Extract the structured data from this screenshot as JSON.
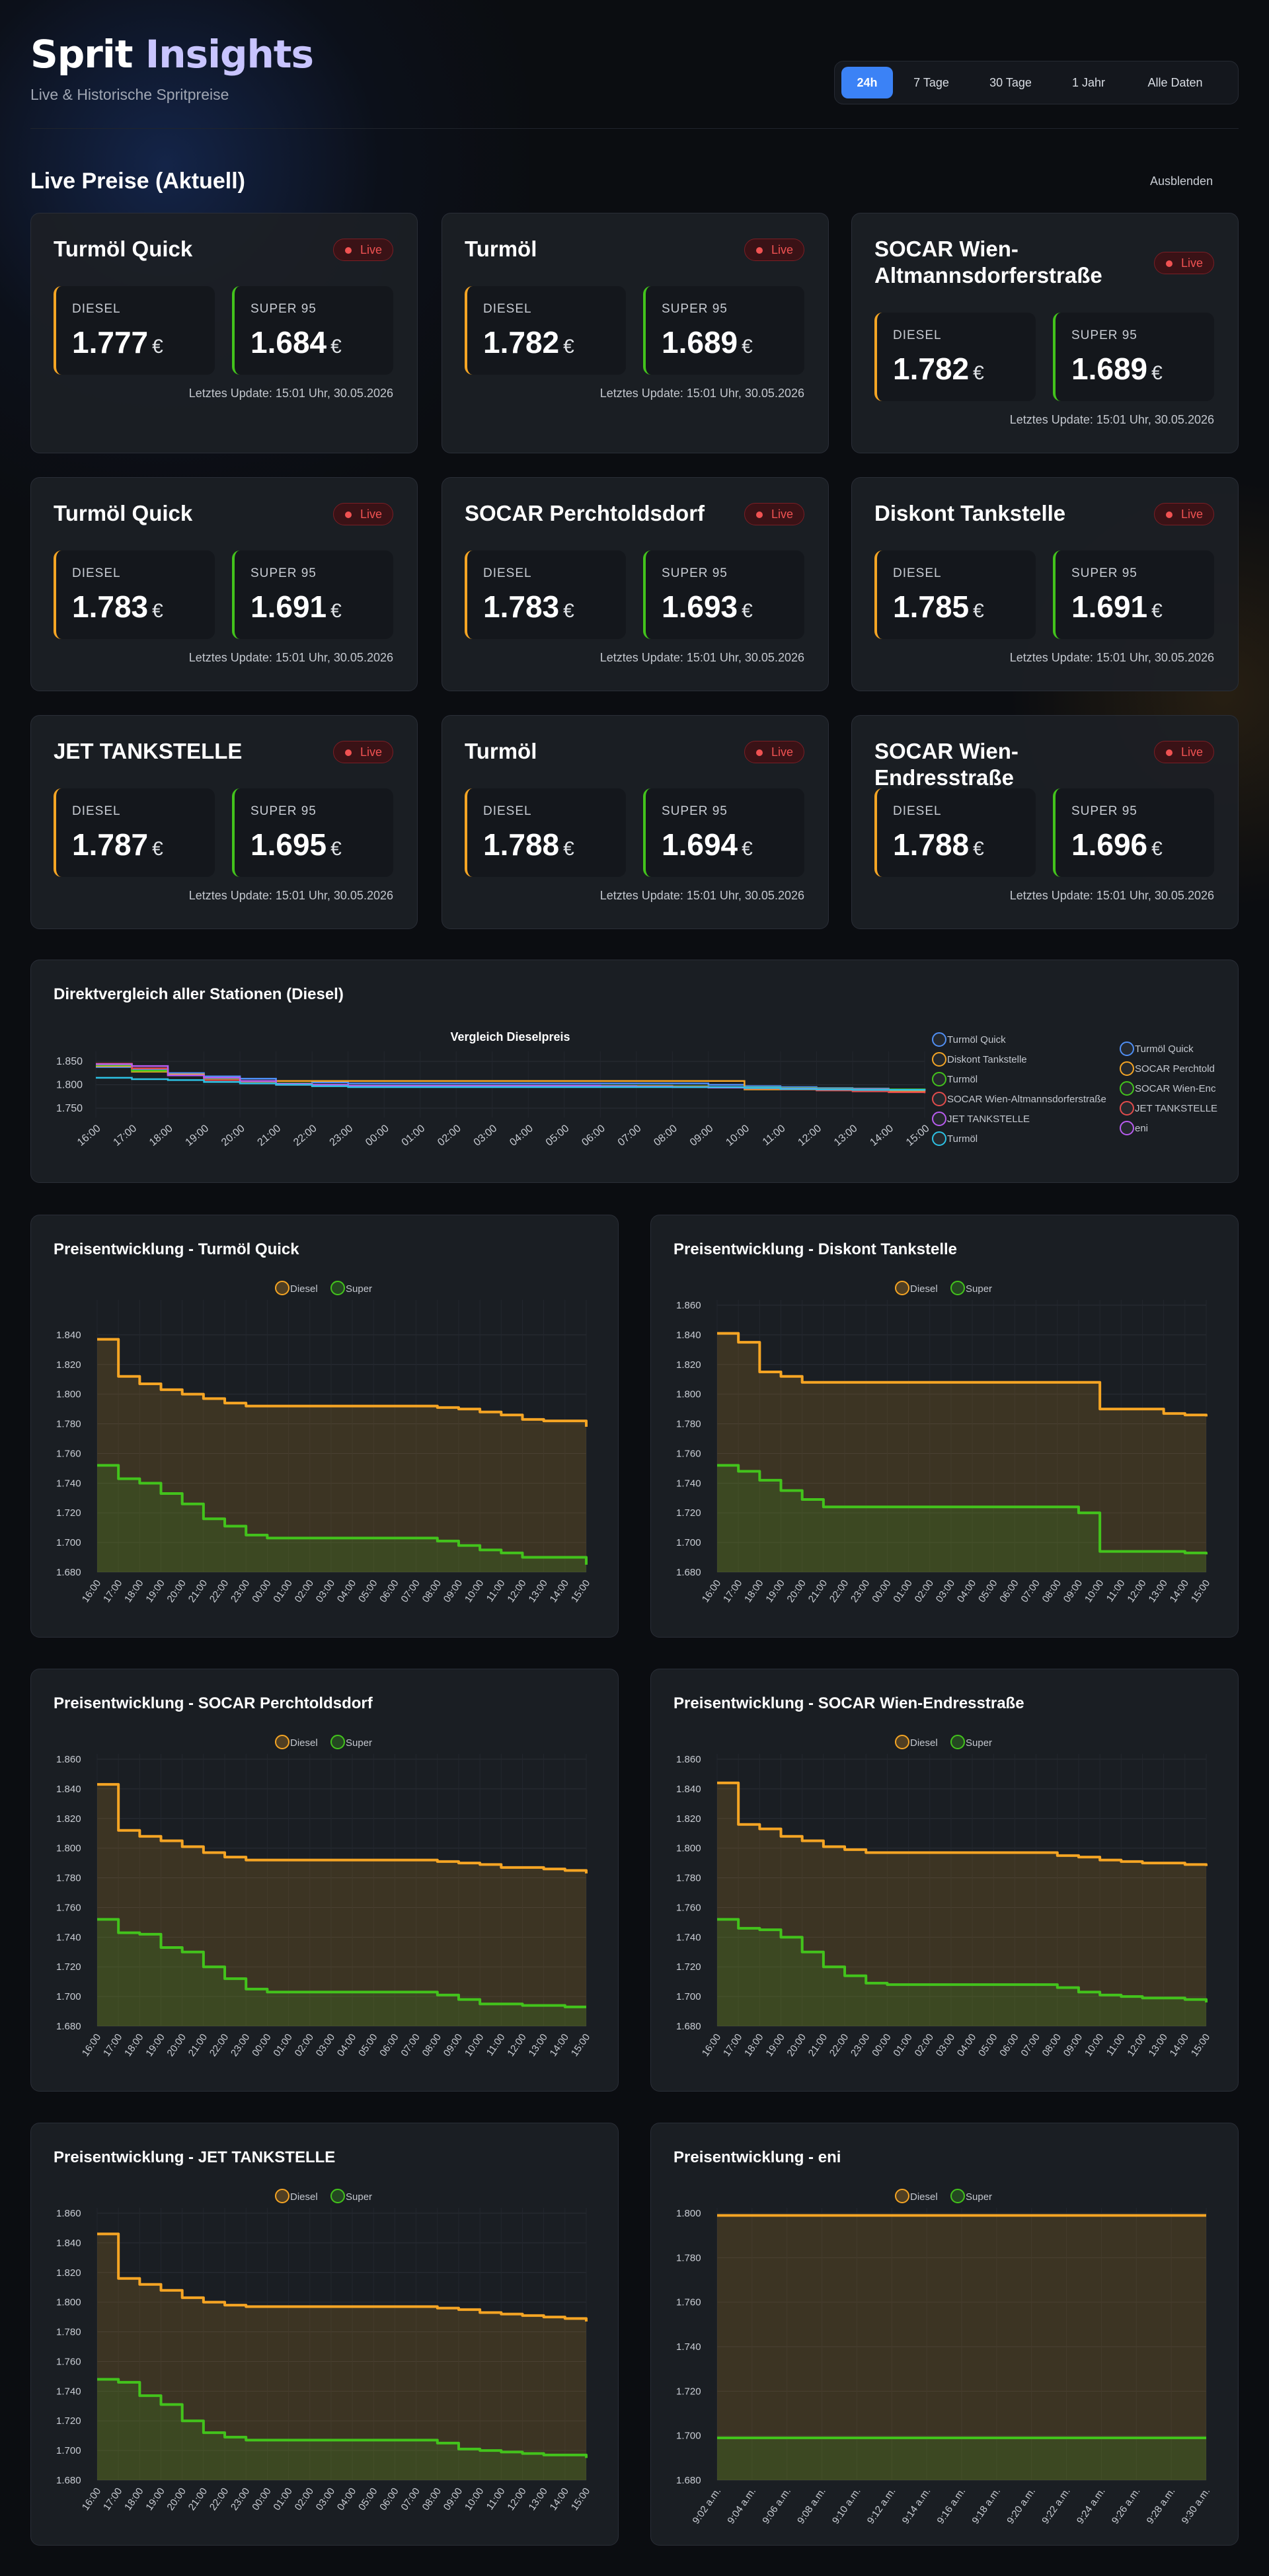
{
  "header": {
    "title_main": "Sprit",
    "title_accent": "Insights",
    "subtitle": "Live & Historische Spritpreise",
    "ranges": [
      "24h",
      "7 Tage",
      "30 Tage",
      "1 Jahr",
      "Alle Daten"
    ],
    "active_range": "24h"
  },
  "live_section": {
    "title": "Live Preise (Aktuell)",
    "hide_label": "Ausblenden",
    "live_label": "Live",
    "diesel_label": "DIESEL",
    "super_label": "SUPER 95",
    "currency": "€",
    "update_text": "Letztes Update: 15:01 Uhr, 30.05.2026"
  },
  "stations": [
    {
      "name": "Turmöl Quick",
      "diesel": "1.777",
      "super": "1.684"
    },
    {
      "name": "Turmöl",
      "diesel": "1.782",
      "super": "1.689"
    },
    {
      "name": "SOCAR Wien-Altmannsdorferstraße",
      "diesel": "1.782",
      "super": "1.689"
    },
    {
      "name": "Turmöl Quick",
      "diesel": "1.783",
      "super": "1.691"
    },
    {
      "name": "SOCAR Perchtoldsdorf",
      "diesel": "1.783",
      "super": "1.693"
    },
    {
      "name": "Diskont Tankstelle",
      "diesel": "1.785",
      "super": "1.691"
    },
    {
      "name": "JET TANKSTELLE",
      "diesel": "1.787",
      "super": "1.695"
    },
    {
      "name": "Turmöl",
      "diesel": "1.788",
      "super": "1.694"
    },
    {
      "name": "SOCAR Wien-Endresstraße",
      "diesel": "1.788",
      "super": "1.696"
    }
  ],
  "colors": {
    "diesel": "#f5a524",
    "super": "#43c31c",
    "accent": "#3b82f6",
    "live": "#f05252"
  },
  "comparison": {
    "card_title": "Direktvergleich aller Stationen (Diesel)"
  },
  "chart_data": [
    {
      "type": "line",
      "title": "Vergleich Dieselpreis",
      "x": [
        "16:00",
        "17:00",
        "18:00",
        "19:00",
        "20:00",
        "21:00",
        "22:00",
        "23:00",
        "00:00",
        "01:00",
        "02:00",
        "03:00",
        "04:00",
        "05:00",
        "06:00",
        "07:00",
        "08:00",
        "09:00",
        "10:00",
        "11:00",
        "12:00",
        "13:00",
        "14:00",
        "15:00"
      ],
      "ylim": [
        1.73,
        1.86
      ],
      "yticks": [
        "1.850",
        "1.800",
        "1.750"
      ],
      "legend_left": [
        "Turmöl Quick",
        "Diskont Tankstelle",
        "Turmöl",
        "SOCAR Wien-Altmannsdorferstraße",
        "JET TANKSTELLE",
        "Turmöl"
      ],
      "legend_right": [
        "Turmöl Quick",
        "SOCAR Perchtold",
        "SOCAR Wien-Enc",
        "JET TANKSTELLE",
        "eni"
      ],
      "series": [
        {
          "color": "#4e8ff7",
          "values": [
            1.838,
            1.832,
            1.825,
            1.818,
            1.813,
            1.808,
            1.805,
            1.803,
            1.803,
            1.803,
            1.803,
            1.803,
            1.803,
            1.803,
            1.803,
            1.803,
            1.803,
            1.8,
            1.797,
            1.795,
            1.793,
            1.792,
            1.79,
            1.788
          ]
        },
        {
          "color": "#f5a524",
          "values": [
            1.84,
            1.828,
            1.822,
            1.812,
            1.808,
            1.808,
            1.808,
            1.808,
            1.808,
            1.808,
            1.808,
            1.808,
            1.808,
            1.808,
            1.808,
            1.808,
            1.808,
            1.808,
            1.79,
            1.79,
            1.79,
            1.788,
            1.786,
            1.785
          ]
        },
        {
          "color": "#43c31c",
          "values": [
            1.842,
            1.83,
            1.82,
            1.812,
            1.807,
            1.803,
            1.8,
            1.798,
            1.798,
            1.798,
            1.798,
            1.798,
            1.798,
            1.798,
            1.798,
            1.798,
            1.797,
            1.795,
            1.794,
            1.793,
            1.792,
            1.791,
            1.79,
            1.788
          ]
        },
        {
          "color": "#e24c4c",
          "values": [
            1.845,
            1.835,
            1.82,
            1.81,
            1.804,
            1.8,
            1.798,
            1.797,
            1.797,
            1.797,
            1.797,
            1.797,
            1.797,
            1.797,
            1.797,
            1.797,
            1.796,
            1.795,
            1.792,
            1.79,
            1.788,
            1.786,
            1.784,
            1.782
          ]
        },
        {
          "color": "#b85cf0",
          "values": [
            1.844,
            1.84,
            1.82,
            1.815,
            1.808,
            1.802,
            1.8,
            1.798,
            1.798,
            1.798,
            1.798,
            1.798,
            1.798,
            1.798,
            1.797,
            1.796,
            1.795,
            1.794,
            1.793,
            1.792,
            1.791,
            1.79,
            1.789,
            1.787
          ]
        },
        {
          "color": "#2dc2e5",
          "values": [
            1.815,
            1.812,
            1.81,
            1.806,
            1.803,
            1.8,
            1.797,
            1.795,
            1.795,
            1.795,
            1.795,
            1.795,
            1.795,
            1.795,
            1.795,
            1.795,
            1.795,
            1.795,
            1.793,
            1.791,
            1.79,
            1.789,
            1.789,
            1.788
          ]
        }
      ]
    },
    {
      "type": "line",
      "title": "Preisentwicklung - Turmöl Quick",
      "legend": [
        "Diesel",
        "Super"
      ],
      "x": [
        "16:00",
        "17:00",
        "18:00",
        "19:00",
        "20:00",
        "21:00",
        "22:00",
        "23:00",
        "00:00",
        "01:00",
        "02:00",
        "03:00",
        "04:00",
        "05:00",
        "06:00",
        "07:00",
        "08:00",
        "09:00",
        "10:00",
        "11:00",
        "12:00",
        "13:00",
        "14:00",
        "15:00"
      ],
      "ylim": [
        1.68,
        1.86
      ],
      "yticks": [
        "1.840",
        "1.820",
        "1.800",
        "1.780",
        "1.760",
        "1.740",
        "1.720",
        "1.700",
        "1.680"
      ],
      "series": [
        {
          "name": "Diesel",
          "values": [
            1.837,
            1.812,
            1.807,
            1.803,
            1.8,
            1.797,
            1.794,
            1.792,
            1.792,
            1.792,
            1.792,
            1.792,
            1.792,
            1.792,
            1.792,
            1.792,
            1.791,
            1.79,
            1.788,
            1.786,
            1.783,
            1.782,
            1.782,
            1.778
          ]
        },
        {
          "name": "Super",
          "values": [
            1.752,
            1.743,
            1.74,
            1.733,
            1.726,
            1.716,
            1.711,
            1.705,
            1.703,
            1.703,
            1.703,
            1.703,
            1.703,
            1.703,
            1.703,
            1.703,
            1.701,
            1.698,
            1.695,
            1.693,
            1.69,
            1.69,
            1.69,
            1.685
          ]
        }
      ]
    },
    {
      "type": "line",
      "title": "Preisentwicklung - Diskont Tankstelle",
      "legend": [
        "Diesel",
        "Super"
      ],
      "x": [
        "16:00",
        "17:00",
        "18:00",
        "19:00",
        "20:00",
        "21:00",
        "22:00",
        "23:00",
        "00:00",
        "01:00",
        "02:00",
        "03:00",
        "04:00",
        "05:00",
        "06:00",
        "07:00",
        "08:00",
        "09:00",
        "10:00",
        "11:00",
        "12:00",
        "13:00",
        "14:00",
        "15:00"
      ],
      "ylim": [
        1.68,
        1.86
      ],
      "yticks": [
        "1.860",
        "1.840",
        "1.820",
        "1.800",
        "1.780",
        "1.760",
        "1.740",
        "1.720",
        "1.700",
        "1.680"
      ],
      "series": [
        {
          "name": "Diesel",
          "values": [
            1.841,
            1.835,
            1.815,
            1.812,
            1.808,
            1.808,
            1.808,
            1.808,
            1.808,
            1.808,
            1.808,
            1.808,
            1.808,
            1.808,
            1.808,
            1.808,
            1.808,
            1.808,
            1.79,
            1.79,
            1.79,
            1.787,
            1.786,
            1.785
          ]
        },
        {
          "name": "Super",
          "values": [
            1.752,
            1.748,
            1.742,
            1.735,
            1.729,
            1.724,
            1.724,
            1.724,
            1.724,
            1.724,
            1.724,
            1.724,
            1.724,
            1.724,
            1.724,
            1.724,
            1.724,
            1.72,
            1.694,
            1.694,
            1.694,
            1.694,
            1.693,
            1.692
          ]
        }
      ]
    },
    {
      "type": "line",
      "title": "Preisentwicklung - SOCAR Perchtoldsdorf",
      "legend": [
        "Diesel",
        "Super"
      ],
      "x": [
        "16:00",
        "17:00",
        "18:00",
        "19:00",
        "20:00",
        "21:00",
        "22:00",
        "23:00",
        "00:00",
        "01:00",
        "02:00",
        "03:00",
        "04:00",
        "05:00",
        "06:00",
        "07:00",
        "08:00",
        "09:00",
        "10:00",
        "11:00",
        "12:00",
        "13:00",
        "14:00",
        "15:00"
      ],
      "ylim": [
        1.68,
        1.86
      ],
      "yticks": [
        "1.860",
        "1.840",
        "1.820",
        "1.800",
        "1.780",
        "1.760",
        "1.740",
        "1.720",
        "1.700",
        "1.680"
      ],
      "series": [
        {
          "name": "Diesel",
          "values": [
            1.843,
            1.812,
            1.808,
            1.805,
            1.801,
            1.797,
            1.794,
            1.792,
            1.792,
            1.792,
            1.792,
            1.792,
            1.792,
            1.792,
            1.792,
            1.792,
            1.791,
            1.79,
            1.789,
            1.787,
            1.787,
            1.786,
            1.785,
            1.783
          ]
        },
        {
          "name": "Super",
          "values": [
            1.752,
            1.743,
            1.742,
            1.733,
            1.73,
            1.72,
            1.712,
            1.705,
            1.703,
            1.703,
            1.703,
            1.703,
            1.703,
            1.703,
            1.703,
            1.703,
            1.701,
            1.698,
            1.695,
            1.695,
            1.694,
            1.694,
            1.693,
            1.693
          ]
        }
      ]
    },
    {
      "type": "line",
      "title": "Preisentwicklung - SOCAR Wien-Endresstraße",
      "legend": [
        "Diesel",
        "Super"
      ],
      "x": [
        "16:00",
        "17:00",
        "18:00",
        "19:00",
        "20:00",
        "21:00",
        "22:00",
        "23:00",
        "00:00",
        "01:00",
        "02:00",
        "03:00",
        "04:00",
        "05:00",
        "06:00",
        "07:00",
        "08:00",
        "09:00",
        "10:00",
        "11:00",
        "12:00",
        "13:00",
        "14:00",
        "15:00"
      ],
      "ylim": [
        1.68,
        1.86
      ],
      "yticks": [
        "1.860",
        "1.840",
        "1.820",
        "1.800",
        "1.780",
        "1.760",
        "1.740",
        "1.720",
        "1.700",
        "1.680"
      ],
      "series": [
        {
          "name": "Diesel",
          "values": [
            1.844,
            1.816,
            1.813,
            1.808,
            1.805,
            1.801,
            1.799,
            1.797,
            1.797,
            1.797,
            1.797,
            1.797,
            1.797,
            1.797,
            1.797,
            1.797,
            1.795,
            1.794,
            1.792,
            1.791,
            1.79,
            1.79,
            1.789,
            1.788
          ]
        },
        {
          "name": "Super",
          "values": [
            1.752,
            1.746,
            1.745,
            1.74,
            1.73,
            1.72,
            1.714,
            1.709,
            1.708,
            1.708,
            1.708,
            1.708,
            1.708,
            1.708,
            1.708,
            1.708,
            1.706,
            1.703,
            1.701,
            1.7,
            1.699,
            1.699,
            1.698,
            1.696
          ]
        }
      ]
    },
    {
      "type": "line",
      "title": "Preisentwicklung - JET TANKSTELLE",
      "legend": [
        "Diesel",
        "Super"
      ],
      "x": [
        "16:00",
        "17:00",
        "18:00",
        "19:00",
        "20:00",
        "21:00",
        "22:00",
        "23:00",
        "00:00",
        "01:00",
        "02:00",
        "03:00",
        "04:00",
        "05:00",
        "06:00",
        "07:00",
        "08:00",
        "09:00",
        "10:00",
        "11:00",
        "12:00",
        "13:00",
        "14:00",
        "15:00"
      ],
      "ylim": [
        1.68,
        1.86
      ],
      "yticks": [
        "1.860",
        "1.840",
        "1.820",
        "1.800",
        "1.780",
        "1.760",
        "1.740",
        "1.720",
        "1.700",
        "1.680"
      ],
      "series": [
        {
          "name": "Diesel",
          "values": [
            1.846,
            1.816,
            1.812,
            1.808,
            1.803,
            1.8,
            1.798,
            1.797,
            1.797,
            1.797,
            1.797,
            1.797,
            1.797,
            1.797,
            1.797,
            1.797,
            1.796,
            1.795,
            1.793,
            1.792,
            1.791,
            1.79,
            1.789,
            1.787
          ]
        },
        {
          "name": "Super",
          "values": [
            1.748,
            1.746,
            1.737,
            1.731,
            1.72,
            1.712,
            1.709,
            1.707,
            1.707,
            1.707,
            1.707,
            1.707,
            1.707,
            1.707,
            1.707,
            1.707,
            1.705,
            1.701,
            1.7,
            1.699,
            1.698,
            1.697,
            1.697,
            1.695
          ]
        }
      ]
    },
    {
      "type": "line",
      "title": "Preisentwicklung - eni",
      "legend": [
        "Diesel",
        "Super"
      ],
      "x": [
        "9:02 a.m.",
        "9:04 a.m.",
        "9:06 a.m.",
        "9:08 a.m.",
        "9:10 a.m.",
        "9:12 a.m.",
        "9:14 a.m.",
        "9:16 a.m.",
        "9:18 a.m.",
        "9:20 a.m.",
        "9:22 a.m.",
        "9:24 a.m.",
        "9:26 a.m.",
        "9:28 a.m.",
        "9:30 a.m."
      ],
      "ylim": [
        1.68,
        1.8
      ],
      "yticks": [
        "1.800",
        "1.780",
        "1.760",
        "1.740",
        "1.720",
        "1.700",
        "1.680"
      ],
      "series": [
        {
          "name": "Diesel",
          "values": [
            1.799,
            1.799,
            1.799,
            1.799,
            1.799,
            1.799,
            1.799,
            1.799,
            1.799,
            1.799,
            1.799,
            1.799,
            1.799,
            1.799,
            1.799
          ]
        },
        {
          "name": "Super",
          "values": [
            1.699,
            1.699,
            1.699,
            1.699,
            1.699,
            1.699,
            1.699,
            1.699,
            1.699,
            1.699,
            1.699,
            1.699,
            1.699,
            1.699,
            1.699
          ]
        }
      ]
    }
  ]
}
